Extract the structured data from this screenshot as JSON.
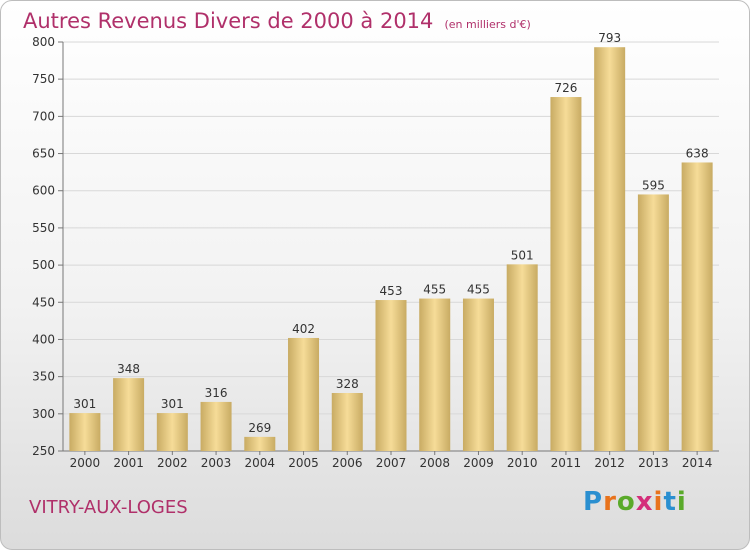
{
  "header": {
    "title": "Autres Revenus Divers de 2000 à 2014",
    "unit": "(en milliers d'€)"
  },
  "footer": {
    "city": "VITRY-AUX-LOGES",
    "logo_letters": [
      "P",
      "r",
      "o",
      "x",
      "i",
      "t",
      "i"
    ],
    "logo_colors": [
      "#2a8fd0",
      "#e8731c",
      "#5aaa2a",
      "#d42e7a",
      "#e8731c",
      "#2a8fd0",
      "#5aaa2a"
    ]
  },
  "colors": {
    "bar_light": "#f6dc98",
    "bar_dark": "#c8ab63",
    "grid": "#d8d8d8",
    "axis": "#777777",
    "text": "#333333"
  },
  "chart_data": {
    "type": "bar",
    "title": "Autres Revenus Divers de 2000 à 2014",
    "categories": [
      "2000",
      "2001",
      "2002",
      "2003",
      "2004",
      "2005",
      "2006",
      "2007",
      "2008",
      "2009",
      "2010",
      "2011",
      "2012",
      "2013",
      "2014"
    ],
    "values": [
      301,
      348,
      301,
      316,
      269,
      402,
      328,
      453,
      455,
      455,
      501,
      726,
      793,
      595,
      638
    ],
    "yticks": [
      250,
      300,
      350,
      400,
      450,
      500,
      550,
      600,
      650,
      700,
      750,
      800
    ],
    "ylim": [
      250,
      800
    ],
    "grid": true,
    "xlabel": "",
    "ylabel": ""
  }
}
